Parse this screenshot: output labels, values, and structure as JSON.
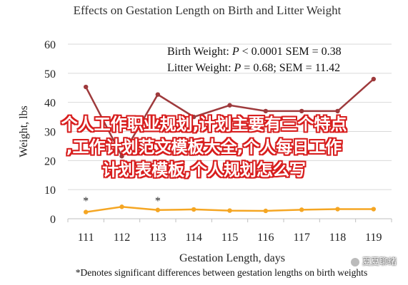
{
  "chart_data": {
    "type": "line",
    "title": "Effects on Gestation Length on Birth and Litter Weight",
    "xlabel": "Gestation Length, days",
    "ylabel": "Weight, lbs",
    "categories": [
      "111",
      "112",
      "113",
      "114",
      "115",
      "116",
      "117",
      "118",
      "119"
    ],
    "ylim": [
      0,
      60
    ],
    "yticks": [
      0,
      10,
      20,
      30,
      40,
      50,
      60
    ],
    "grid": true,
    "series": [
      {
        "name": "Birth Weight",
        "color": "#9e3a3c",
        "values": [
          45.3,
          21.5,
          42.7,
          35.0,
          39.0,
          37.0,
          37.0,
          37.0,
          48.0
        ],
        "stat_prefix": "Birth Weight: ",
        "stat_italic": "P",
        "stat_suffix": " < 0.0001 SEM = 0.38"
      },
      {
        "name": "Litter Weight",
        "color": "#f5a623",
        "values": [
          2.3,
          4.1,
          3.0,
          3.2,
          2.8,
          2.7,
          3.1,
          3.3,
          3.3
        ],
        "stat_prefix": "Litter Weight: ",
        "stat_italic": "P",
        "stat_suffix": " = 0.68; SEM = 11.42"
      }
    ],
    "annotations": [
      {
        "category": "111",
        "text": "*"
      },
      {
        "category": "113",
        "text": "*"
      }
    ],
    "footnote": "*Denotes significant differences between gestation lengths on birth weights"
  },
  "overlay": {
    "line1": "个人工作职业规划,计划主要有三个特点",
    "line2": ",工作计划范文模板大全,个人每日工作",
    "line3": "计划表模板,个人规划怎么写"
  },
  "watermark": "夏夏聊绪"
}
